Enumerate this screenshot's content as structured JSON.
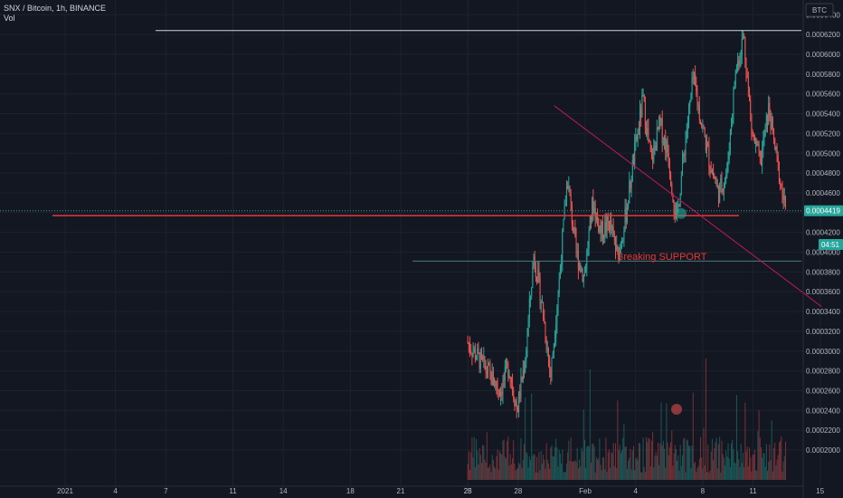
{
  "header": {
    "symbol_line": "SNX / Bitcoin, 1h, BINANCE",
    "volume_label": "Vol"
  },
  "currency_badge": "BTC",
  "annotation": {
    "text": "Breaking SUPPORT",
    "color": "#e53935"
  },
  "colors": {
    "background": "#131722",
    "up": "#26a69a",
    "down": "#ef5350",
    "grid": "#1e222d",
    "axis_text": "#b2b5be",
    "resistance_line": "#d1d4dc",
    "support_line": "#e53935",
    "trend_line": "#c2185b",
    "lower_support_line": "#4a7a7a",
    "price_badge": "#26a69a"
  },
  "chart_data": {
    "type": "candlestick",
    "title": "SNX / Bitcoin, 1h, BINANCE",
    "y_axis": {
      "ticks": [
        "0.0006400",
        "0.0006200",
        "0.0006000",
        "0.0005800",
        "0.0005600",
        "0.0005400",
        "0.0005200",
        "0.0005000",
        "0.0004800",
        "0.0004600",
        "0.0004400",
        "0.0004200",
        "0.0004000",
        "0.0003800",
        "0.0003600",
        "0.0003400",
        "0.0003200",
        "0.0003000",
        "0.0002800",
        "0.0002600",
        "0.0002400",
        "0.0002200",
        "0.0002000"
      ],
      "range": [
        0.0002,
        0.00065
      ]
    },
    "x_axis": {
      "ticks": [
        "28",
        "2021",
        "4",
        "7",
        "11",
        "14",
        "18",
        "21",
        "25",
        "28",
        "Feb",
        "4",
        "8",
        "11",
        "15"
      ]
    },
    "current_price": {
      "value": "0.0004419",
      "countdown": "04:51"
    },
    "key_levels": [
      {
        "name": "resistance",
        "value": 0.000624
      },
      {
        "name": "support",
        "value": 0.000437
      },
      {
        "name": "lower-support",
        "value": 0.000391
      }
    ],
    "trend_line": {
      "from": {
        "date": "Jan 28",
        "value": 0.000548
      },
      "to": {
        "date": "Feb 14",
        "value": 0.000345
      }
    },
    "price_path": [
      {
        "date": "Dec 28",
        "value": 0.00031
      },
      {
        "date": "Dec 30",
        "value": 0.00026
      },
      {
        "date": "Jan 1",
        "value": 0.000285
      },
      {
        "date": "Jan 3",
        "value": 0.00024
      },
      {
        "date": "Jan 4",
        "value": 0.000295
      },
      {
        "date": "Jan 6",
        "value": 0.000398
      },
      {
        "date": "Jan 7",
        "value": 0.000345
      },
      {
        "date": "Jan 9",
        "value": 0.000275
      },
      {
        "date": "Jan 11",
        "value": 0.00037
      },
      {
        "date": "Jan 13",
        "value": 0.000475
      },
      {
        "date": "Jan 14",
        "value": 0.0004
      },
      {
        "date": "Jan 15",
        "value": 0.000375
      },
      {
        "date": "Jan 17",
        "value": 0.00045
      },
      {
        "date": "Jan 19",
        "value": 0.00042
      },
      {
        "date": "Jan 21",
        "value": 0.00043
      },
      {
        "date": "Jan 22",
        "value": 0.000395
      },
      {
        "date": "Jan 23",
        "value": 0.00044
      },
      {
        "date": "Jan 24",
        "value": 0.0005
      },
      {
        "date": "Jan 25",
        "value": 0.000555
      },
      {
        "date": "Jan 26",
        "value": 0.00049
      },
      {
        "date": "Jan 27",
        "value": 0.00053
      },
      {
        "date": "Jan 28",
        "value": 0.0005
      },
      {
        "date": "Jan 29",
        "value": 0.00043
      },
      {
        "date": "Jan 30",
        "value": 0.00051
      },
      {
        "date": "Jan 31",
        "value": 0.000575
      },
      {
        "date": "Feb 1",
        "value": 0.00053
      },
      {
        "date": "Feb 2",
        "value": 0.00049
      },
      {
        "date": "Feb 3",
        "value": 0.00046
      },
      {
        "date": "Feb 4",
        "value": 0.00048
      },
      {
        "date": "Feb 5",
        "value": 0.00058
      },
      {
        "date": "Feb 6",
        "value": 0.00062
      },
      {
        "date": "Feb 6",
        "value": 0.00052
      },
      {
        "date": "Feb 7",
        "value": 0.00049
      },
      {
        "date": "Feb 8",
        "value": 0.000545
      },
      {
        "date": "Feb 8",
        "value": 0.00049
      },
      {
        "date": "Feb 9",
        "value": 0.000442
      }
    ]
  }
}
